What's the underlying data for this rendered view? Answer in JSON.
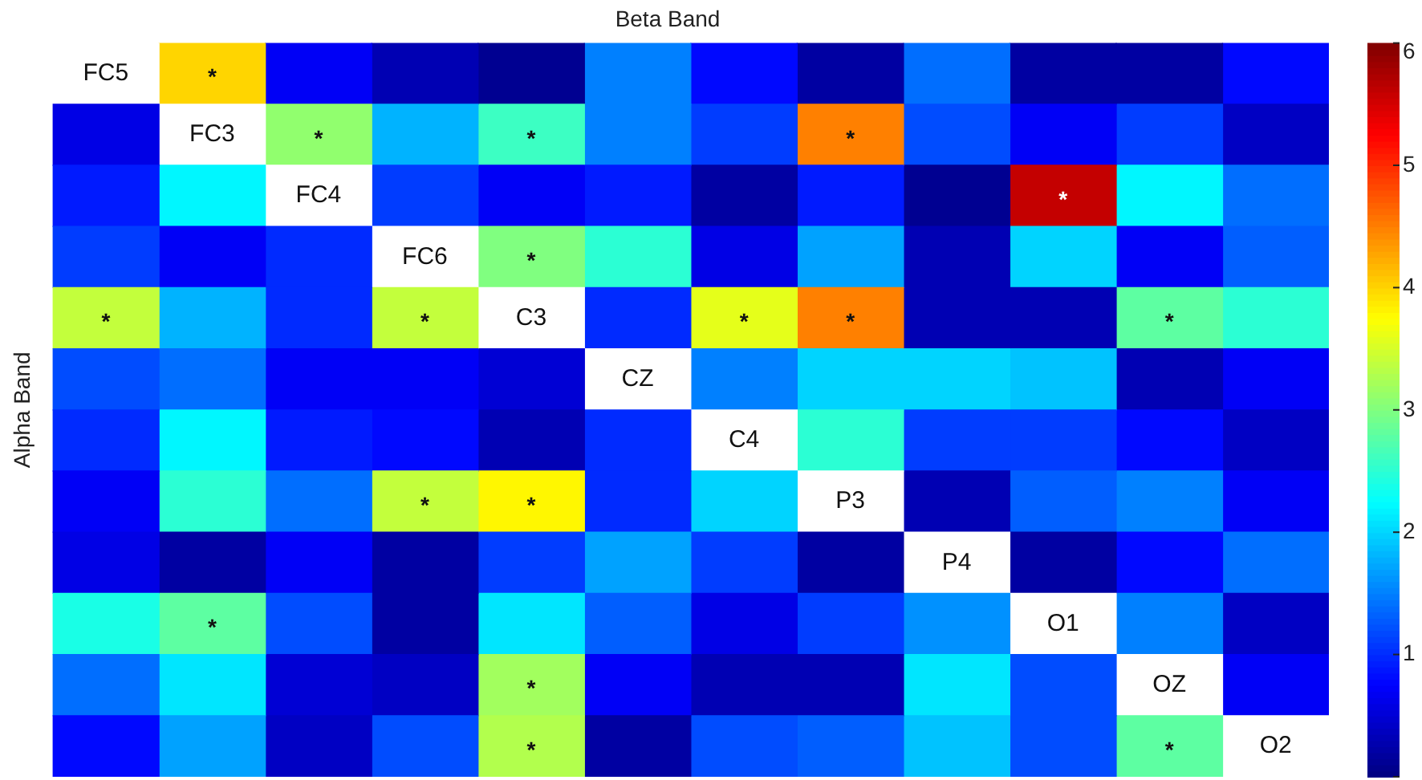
{
  "chart_data": {
    "type": "heatmap",
    "title": "Beta Band",
    "ylabel": "Alpha Band",
    "categories": [
      null,
      null,
      null,
      null,
      null,
      null,
      null,
      null,
      null,
      null,
      null,
      null
    ],
    "y_categories": [
      null,
      null,
      null,
      null,
      null,
      null,
      null,
      null,
      null,
      null,
      null,
      null
    ],
    "cells": [
      [
        null,
        4.0,
        0.7,
        0.3,
        0.1,
        1.5,
        0.8,
        0.2,
        1.4,
        0.2,
        0.2,
        0.8
      ],
      [
        0.6,
        null,
        3.1,
        1.8,
        2.6,
        1.5,
        1.1,
        4.5,
        1.2,
        0.7,
        1.1,
        0.4
      ],
      [
        0.9,
        2.2,
        null,
        1.1,
        0.7,
        0.9,
        0.2,
        0.9,
        0.1,
        5.6,
        2.2,
        1.4
      ],
      [
        1.1,
        0.7,
        1.0,
        null,
        3.0,
        2.5,
        0.6,
        1.7,
        0.3,
        2.0,
        0.7,
        1.3
      ],
      [
        3.4,
        1.8,
        1.0,
        3.4,
        null,
        1.0,
        3.6,
        4.5,
        0.3,
        0.3,
        2.8,
        2.5
      ],
      [
        1.2,
        1.4,
        0.7,
        0.7,
        0.5,
        null,
        1.5,
        2.0,
        2.0,
        1.9,
        0.3,
        0.7
      ],
      [
        1.0,
        2.2,
        0.9,
        0.8,
        0.3,
        1.0,
        null,
        2.5,
        1.1,
        1.1,
        0.8,
        0.4
      ],
      [
        0.7,
        2.5,
        1.4,
        3.4,
        3.8,
        1.0,
        2.0,
        null,
        0.3,
        1.3,
        1.5,
        0.7
      ],
      [
        0.6,
        0.2,
        0.7,
        0.2,
        1.1,
        1.7,
        1.1,
        0.2,
        null,
        0.2,
        0.8,
        1.4
      ],
      [
        2.4,
        2.8,
        1.2,
        0.2,
        2.1,
        1.3,
        0.6,
        1.1,
        1.6,
        null,
        1.5,
        0.4
      ],
      [
        1.4,
        2.1,
        0.5,
        0.4,
        3.2,
        0.7,
        0.3,
        0.3,
        2.1,
        1.2,
        null,
        0.7
      ],
      [
        0.8,
        1.7,
        0.4,
        1.2,
        3.3,
        0.2,
        1.2,
        1.3,
        1.9,
        1.2,
        2.8,
        null
      ]
    ],
    "cell_labels": [
      [
        "FC5",
        "*",
        null,
        null,
        null,
        null,
        null,
        null,
        null,
        null,
        null,
        null
      ],
      [
        null,
        "FC3",
        "*",
        null,
        "*",
        null,
        null,
        "*",
        null,
        null,
        null,
        null
      ],
      [
        null,
        null,
        "FC4",
        null,
        null,
        null,
        null,
        null,
        null,
        "*",
        null,
        null
      ],
      [
        null,
        null,
        null,
        "FC6",
        "*",
        null,
        null,
        null,
        null,
        null,
        null,
        null
      ],
      [
        "*",
        null,
        null,
        "*",
        "C3",
        null,
        "*",
        "*",
        null,
        null,
        "*",
        null
      ],
      [
        null,
        null,
        null,
        null,
        null,
        "CZ",
        null,
        null,
        null,
        null,
        null,
        null
      ],
      [
        null,
        null,
        null,
        null,
        null,
        null,
        "C4",
        null,
        null,
        null,
        null,
        null
      ],
      [
        null,
        null,
        null,
        "*",
        "*",
        null,
        null,
        "P3",
        null,
        null,
        null,
        null
      ],
      [
        null,
        null,
        null,
        null,
        null,
        null,
        null,
        null,
        "P4",
        null,
        null,
        null
      ],
      [
        null,
        "*",
        null,
        null,
        null,
        null,
        null,
        null,
        null,
        "O1",
        null,
        null
      ],
      [
        null,
        null,
        null,
        null,
        "*",
        null,
        null,
        null,
        null,
        null,
        "OZ",
        null
      ],
      [
        null,
        null,
        null,
        null,
        "*",
        null,
        null,
        null,
        null,
        null,
        "*",
        "O2"
      ]
    ],
    "clim": [
      0,
      6
    ],
    "cticks": [
      {
        "value": 0,
        "label": null
      },
      1,
      2,
      3,
      4,
      5,
      6
    ]
  }
}
